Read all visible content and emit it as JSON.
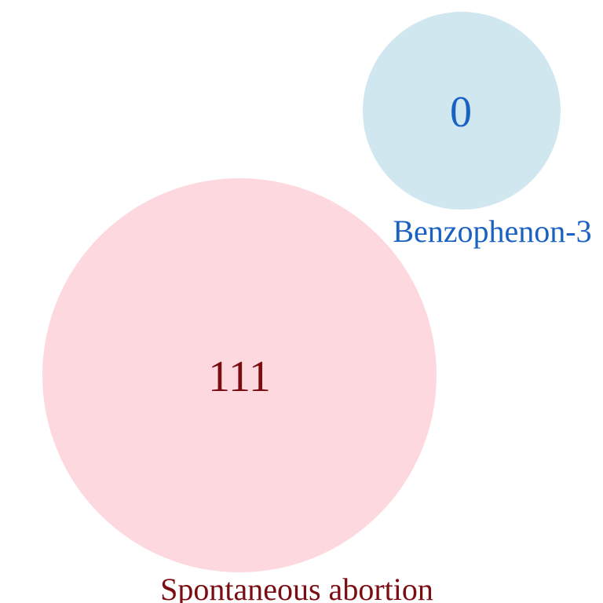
{
  "diagram": {
    "type": "venn",
    "sets": [
      {
        "id": "spontaneous-abortion",
        "label": "Spontaneous abortion",
        "count": "111",
        "fill_color": "#fdd8df",
        "text_color": "#7a0c12"
      },
      {
        "id": "benzophenon-3",
        "label": "Benzophenon-3",
        "count": "0",
        "fill_color": "#d0e7f0",
        "text_color": "#1a62c2"
      }
    ],
    "intersection_count": 0
  }
}
